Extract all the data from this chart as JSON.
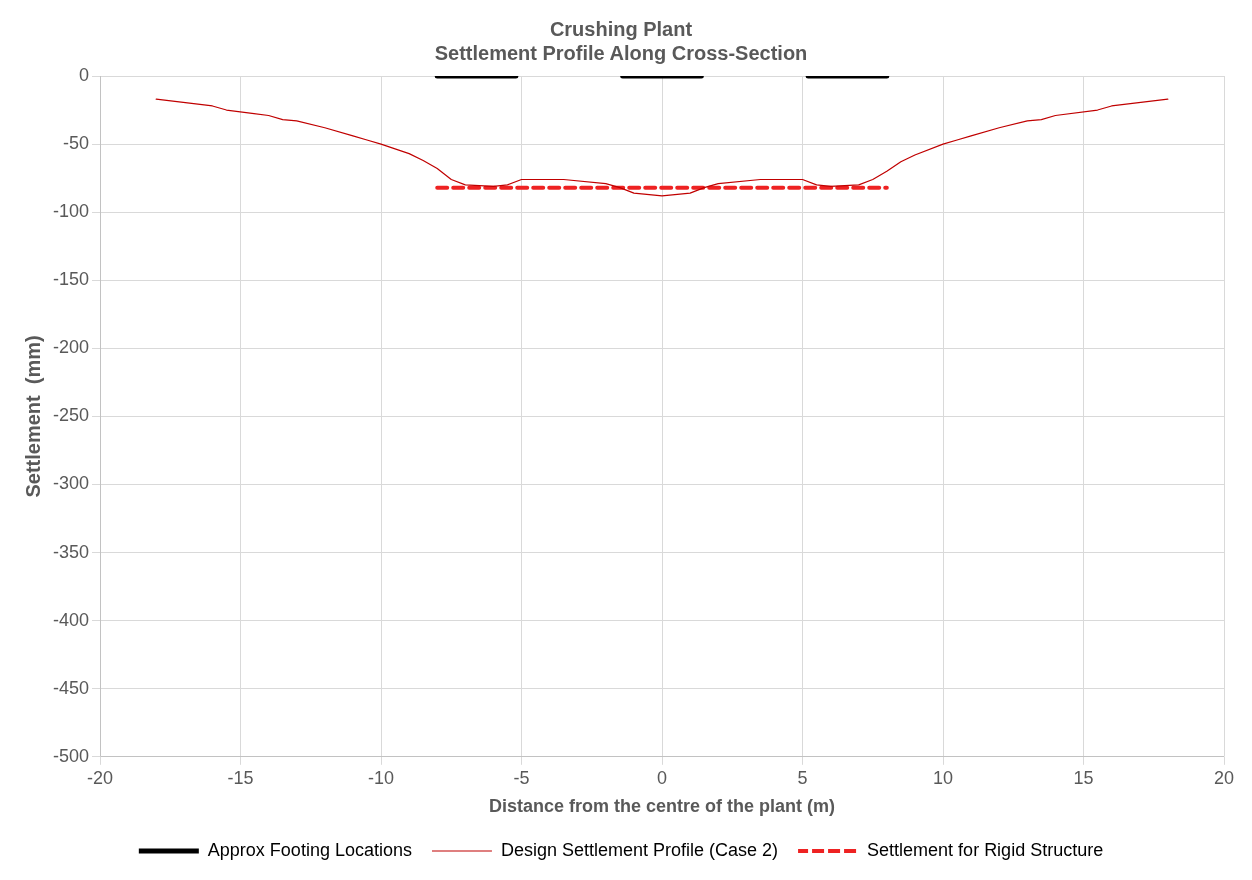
{
  "chart_data": {
    "type": "line",
    "title": "Crushing Plant",
    "subtitle": "Settlement Profile Along Cross-Section",
    "xlabel": "Distance from the centre of the plant (m)",
    "ylabel": "Settlement  (mm)",
    "xlim": [
      -20,
      20
    ],
    "xticks": [
      -20,
      -15,
      -10,
      -5,
      0,
      5,
      10,
      15,
      20
    ],
    "ylim": [
      -500,
      0
    ],
    "yticks": [
      -500,
      -450,
      -400,
      -350,
      -300,
      -250,
      -200,
      -150,
      -100,
      -50,
      0
    ],
    "grid": true,
    "legend": "bottom",
    "marker": "none",
    "series": [
      {
        "name": "Approx Footing Locations",
        "color": "#000000",
        "line_style": "solid",
        "x": [
          -8,
          -5.2,
          -5.1,
          -1.4,
          1.4,
          1.5,
          5.2,
          8
        ],
        "values": [
          0,
          0,
          null,
          0,
          0,
          null,
          0,
          0
        ]
      },
      {
        "name": "Design Settlement Profile (Case 2)",
        "color": "#c00000",
        "line_style": "solid",
        "x": [
          -18,
          -16,
          -15.5,
          -14,
          -13.5,
          -13,
          -12,
          -11,
          -10.5,
          -10,
          -9,
          -8.5,
          -8,
          -7.5,
          -7,
          -6,
          -5.5,
          -5,
          -3.5,
          -2,
          -1.5,
          -1,
          0,
          1,
          1.5,
          2,
          3.5,
          5,
          5.5,
          6,
          7,
          7.5,
          8,
          8.5,
          9,
          10,
          10.5,
          11,
          12,
          13,
          13.5,
          14,
          15.5,
          16,
          18
        ],
        "values": [
          -17,
          -22,
          -25,
          -29,
          -32,
          -33,
          -38,
          -44,
          -47,
          -50,
          -57,
          -62,
          -68,
          -76,
          -80,
          -81,
          -80,
          -76,
          -76,
          -79,
          -82,
          -86,
          -88,
          -86,
          -82,
          -79,
          -76,
          -76,
          -80,
          -81,
          -80,
          -76,
          -70,
          -63,
          -58,
          -50,
          -47,
          -44,
          -38,
          -33,
          -32,
          -29,
          -25,
          -22,
          -17
        ]
      },
      {
        "name": "Settlement for Rigid Structure",
        "color": "#ee2222",
        "line_style": "dashed",
        "x": [
          -8,
          8
        ],
        "values": [
          -82,
          -82
        ]
      }
    ]
  }
}
